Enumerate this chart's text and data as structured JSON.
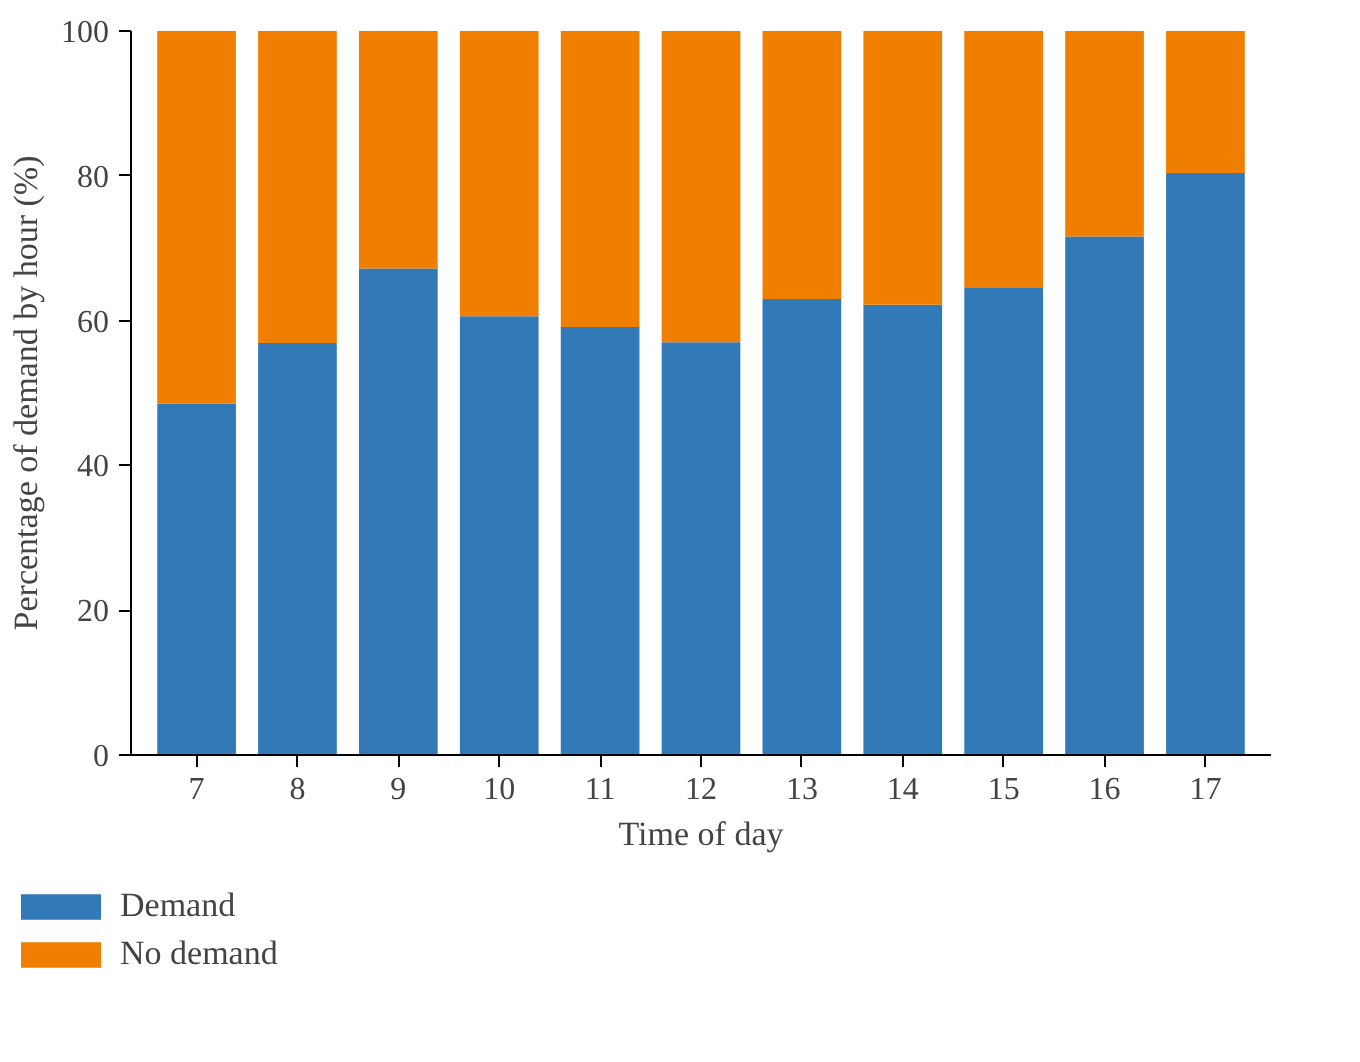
{
  "chart_data": {
    "type": "bar",
    "xlabel": "Time of day",
    "ylabel": "Percentage of demand by hour (%)",
    "categories": [
      "7",
      "8",
      "9",
      "10",
      "11",
      "12",
      "13",
      "14",
      "15",
      "16",
      "17"
    ],
    "stacked": true,
    "series": [
      {
        "name": "Demand",
        "color": "#3279b7",
        "values": [
          48.5,
          56.9,
          67.2,
          60.6,
          59.1,
          57.0,
          63.0,
          62.2,
          64.5,
          71.6,
          80.4
        ]
      },
      {
        "name": "No demand",
        "color": "#f07f00",
        "values": [
          51.5,
          43.1,
          32.8,
          39.4,
          40.9,
          43.0,
          37.0,
          37.8,
          35.5,
          28.4,
          19.6
        ]
      }
    ],
    "ylim": [
      0,
      100
    ],
    "yticks": [
      0,
      20,
      40,
      60,
      80,
      100
    ],
    "grid": false,
    "legend": "bottom left"
  }
}
